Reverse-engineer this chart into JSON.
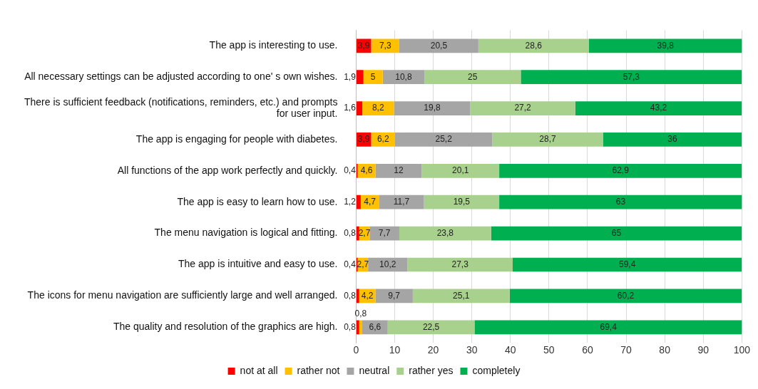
{
  "chart_data": {
    "type": "bar",
    "orientation": "horizontal",
    "stacked": true,
    "categories": [
      "The app is interesting to use.",
      "All necessary settings can be adjusted according to one' s own wishes.",
      "There is sufficient feedback (notifications, reminders, etc.) and prompts for user input.",
      "The app is engaging for people with diabetes.",
      "All functions of the app work perfectly and quickly.",
      "The app is easy to learn how to use.",
      "The menu navigation is logical and fitting.",
      "The app is intuitive and easy to use.",
      "The icons for menu navigation are sufficiently large and well arranged.",
      "The quality and resolution of the graphics are high."
    ],
    "series": [
      {
        "name": "not at all",
        "color": "#ff0000",
        "values": [
          3.9,
          1.9,
          1.6,
          3.9,
          0.4,
          1.2,
          0.8,
          0.4,
          0.8,
          0.8
        ],
        "value_labels": [
          "3,9",
          "1,9",
          "1,6",
          "3,9",
          "0,4",
          "1,2",
          "0,8",
          "0,4",
          "0,8",
          "0,8"
        ]
      },
      {
        "name": "rather not",
        "color": "#ffc000",
        "values": [
          7.3,
          5,
          8.2,
          6.2,
          4.6,
          4.7,
          2.7,
          2.7,
          4.2,
          0.8
        ],
        "value_labels": [
          "7,3",
          "5",
          "8,2",
          "6,2",
          "4,6",
          "4,7",
          "2,7",
          "2,7",
          "4,2",
          "0,8"
        ]
      },
      {
        "name": "neutral",
        "color": "#a5a5a5",
        "values": [
          20.5,
          10.8,
          19.8,
          25.2,
          12,
          11.7,
          7.7,
          10.2,
          9.7,
          6.6
        ],
        "value_labels": [
          "20,5",
          "10,8",
          "19,8",
          "25,2",
          "12",
          "11,7",
          "7,7",
          "10,2",
          "9,7",
          "6,6"
        ]
      },
      {
        "name": "rather yes",
        "color": "#a9d18e",
        "values": [
          28.6,
          25,
          27.2,
          28.7,
          20.1,
          19.5,
          23.8,
          27.3,
          25.1,
          22.5
        ],
        "value_labels": [
          "28,6",
          "25",
          "27,2",
          "28,7",
          "20,1",
          "19,5",
          "23,8",
          "27,3",
          "25,1",
          "22,5"
        ]
      },
      {
        "name": "completely",
        "color": "#00b050",
        "values": [
          39.8,
          57.3,
          43.2,
          36,
          62.9,
          63,
          65,
          59.4,
          60.2,
          69.4
        ],
        "value_labels": [
          "39,8",
          "57,3",
          "43,2",
          "36",
          "62,9",
          "63",
          "65",
          "59,4",
          "60,2",
          "69,4"
        ]
      }
    ],
    "xlim": [
      0,
      100
    ],
    "xticks": [
      0,
      10,
      20,
      30,
      40,
      50,
      60,
      70,
      80,
      90,
      100
    ],
    "grid": "x",
    "legend": "bottom"
  }
}
